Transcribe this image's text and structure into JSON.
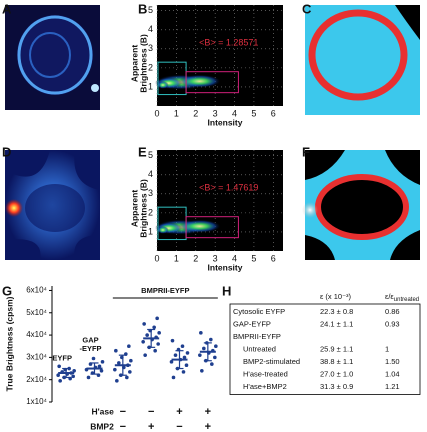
{
  "panel_labels": [
    "A",
    "B",
    "C",
    "D",
    "E",
    "F",
    "G",
    "H"
  ],
  "chart_data": [
    {
      "type": "brightness-scatter",
      "xlabel": "Intensity",
      "ylabel": [
        "Apparent",
        "Brightness (B)"
      ],
      "annotation": "<B> = 1.28571",
      "xlim": [
        0,
        6.5
      ],
      "ylim": [
        0,
        5.3
      ],
      "xticks": [
        0,
        1,
        2,
        3,
        4,
        5,
        6
      ],
      "yticks": [
        1,
        2,
        3,
        4,
        5
      ],
      "grid": true
    },
    {
      "type": "brightness-scatter",
      "xlabel": "Intensity",
      "ylabel": [
        "Apparent",
        "Brightness (B)"
      ],
      "annotation": "<B> = 1.47619",
      "xlim": [
        0,
        6.5
      ],
      "ylim": [
        0,
        5.3
      ],
      "xticks": [
        0,
        1,
        2,
        3,
        4,
        5,
        6
      ],
      "yticks": [
        1,
        2,
        3,
        4,
        5
      ],
      "grid": true
    },
    {
      "type": "dot",
      "ylabel": "True Brightness (cpsm)",
      "color": "#1f3f8f",
      "ylim": [
        10000,
        62000
      ],
      "yticks": [
        {
          "value": 10000,
          "label": "1x10⁴"
        },
        {
          "value": 20000,
          "label": "2x10⁴"
        },
        {
          "value": 30000,
          "label": "3x10⁴"
        },
        {
          "value": 40000,
          "label": "4x10⁴"
        },
        {
          "value": 50000,
          "label": "5x10⁴"
        },
        {
          "value": 60000,
          "label": "6x10⁴"
        }
      ],
      "categories": [
        "EYFP",
        "GAP\n-EYFP",
        null,
        null,
        null,
        null
      ],
      "group_label": "BMPRII-EYFP",
      "treatments": [
        {
          "name": "H'ase",
          "values": [
            "−",
            "−",
            "+",
            "+"
          ]
        },
        {
          "name": "BMP2",
          "values": [
            "−",
            "+",
            "−",
            "+"
          ]
        }
      ],
      "points": [
        [
          19500,
          20500,
          21000,
          21500,
          22000,
          22500,
          23000,
          23500,
          24000,
          24500,
          25000,
          26000
        ],
        [
          21000,
          22000,
          23000,
          24000,
          24500,
          25500,
          26000,
          27000,
          28000,
          29500
        ],
        [
          19500,
          21000,
          22000,
          23500,
          24500,
          25500,
          26500,
          27500,
          28500,
          30000,
          31500,
          33000,
          35000
        ],
        [
          31000,
          33000,
          34500,
          36000,
          37000,
          38000,
          39000,
          40000,
          41000,
          42000,
          43500,
          45000,
          47500
        ],
        [
          21000,
          23500,
          25000,
          26500,
          28000,
          29000,
          30000,
          31000,
          32000,
          33500,
          35000,
          37500
        ],
        [
          24000,
          27000,
          28500,
          30000,
          31000,
          32000,
          33000,
          34000,
          35000,
          36500,
          38000,
          41000
        ]
      ],
      "means": [
        23000,
        25000,
        26500,
        38500,
        29000,
        32500
      ],
      "sd": [
        2000,
        2500,
        4500,
        4000,
        4000,
        4000
      ]
    }
  ],
  "table": {
    "columns": [
      "ε (x 10⁻³)",
      {
        "text": "ε/ε",
        "sub": "untreated"
      }
    ],
    "rows": [
      [
        "Cytosolic EYFP",
        "22.3 ± 0.8",
        "0.86"
      ],
      [
        "GAP-EYFP",
        "24.1 ± 1.1",
        "0.93"
      ],
      [
        "BMPRII-EYFP"
      ],
      [
        "Untreated",
        "25.9 ± 1.1",
        "1"
      ],
      [
        "BMP2-stimulated",
        "38.8 ± 1.1",
        "1.50"
      ],
      [
        "H'ase-treated",
        "27.0 ± 1.0",
        "1.04"
      ],
      [
        "H'ase+BMP2",
        "31.3 ± 0.9",
        "1.21"
      ]
    ]
  }
}
